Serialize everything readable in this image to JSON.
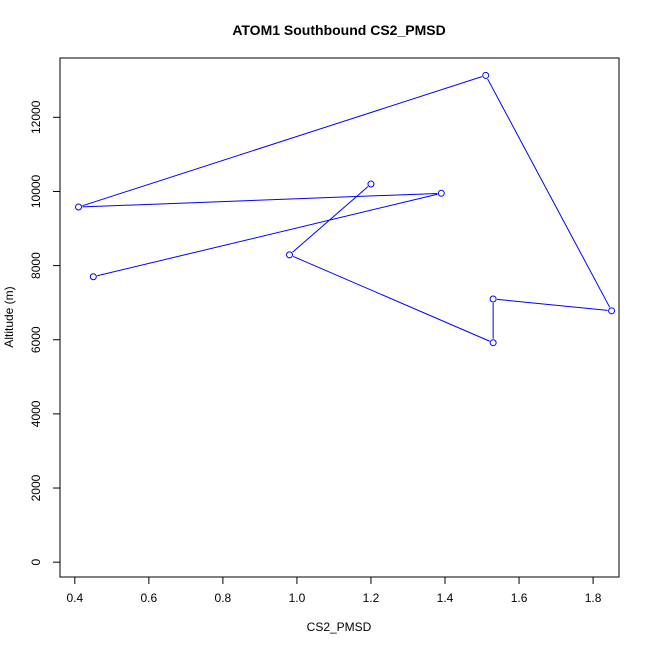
{
  "chart_data": {
    "type": "line",
    "title": "ATOM1 Southbound CS2_PMSD",
    "xlabel": "CS2_PMSD",
    "ylabel": "Altitude (m)",
    "xlim": [
      0.36,
      1.87
    ],
    "ylim": [
      -400,
      13600
    ],
    "x_ticks": [
      0.4,
      0.6,
      0.8,
      1.0,
      1.2,
      1.4,
      1.6,
      1.8
    ],
    "x_tick_labels": [
      "0.4",
      "0.6",
      "0.8",
      "1.0",
      "1.2",
      "1.4",
      "1.6",
      "1.8"
    ],
    "y_ticks": [
      0,
      2000,
      4000,
      6000,
      8000,
      10000,
      12000
    ],
    "y_tick_labels": [
      "0",
      "2000",
      "4000",
      "6000",
      "8000",
      "10000",
      "12000"
    ],
    "grid": false,
    "series": [
      {
        "color": "#0000ff",
        "marker": "open-circle",
        "points": [
          {
            "x": 0.45,
            "y": 7700
          },
          {
            "x": 1.39,
            "y": 9950
          },
          {
            "x": 0.41,
            "y": 9580
          },
          {
            "x": 1.51,
            "y": 13130
          },
          {
            "x": 1.85,
            "y": 6780
          },
          {
            "x": 1.53,
            "y": 7100
          },
          {
            "x": 1.53,
            "y": 5920
          },
          {
            "x": 0.98,
            "y": 8290
          },
          {
            "x": 1.2,
            "y": 10200
          }
        ]
      }
    ]
  }
}
